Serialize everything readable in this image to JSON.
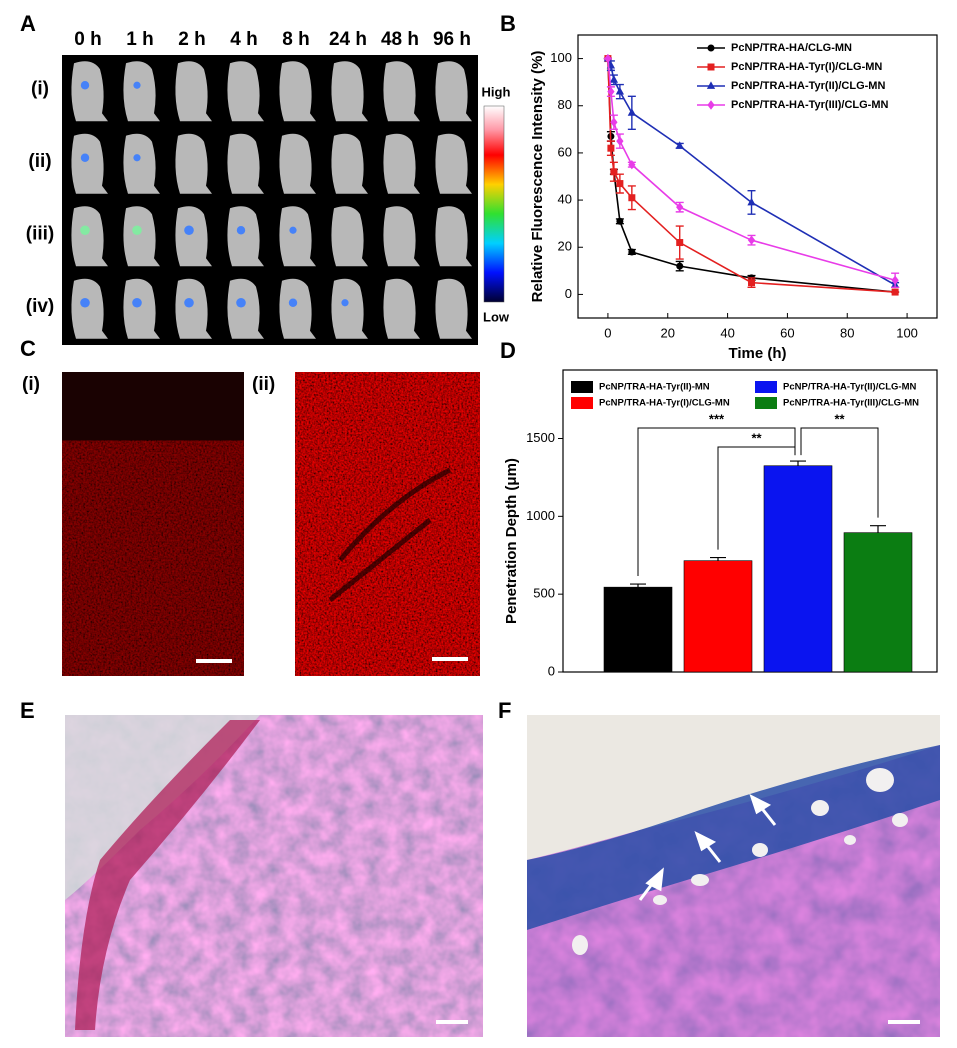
{
  "panels": {
    "A": {
      "label": "A",
      "timepoints": [
        "0 h",
        "1 h",
        "2 h",
        "4 h",
        "8 h",
        "24 h",
        "48 h",
        "96 h"
      ],
      "rows": [
        "(i)",
        "(ii)",
        "(iii)",
        "(iv)"
      ],
      "colorbar": {
        "high": "High",
        "low": "Low"
      }
    },
    "B": {
      "label": "B"
    },
    "C": {
      "label": "C",
      "images": [
        "(i)",
        "(ii)"
      ]
    },
    "D": {
      "label": "D"
    },
    "E": {
      "label": "E"
    },
    "F": {
      "label": "F"
    }
  },
  "chart_data": [
    {
      "type": "line",
      "x_label": "Time (h)",
      "y_label": "Relative Fluorescence Intensity (%)",
      "x": [
        0,
        1,
        2,
        4,
        8,
        24,
        48,
        96
      ],
      "series": [
        {
          "name": "PcNP/TRA-HA/CLG-MN",
          "color": "#000000",
          "marker": "circle",
          "values": [
            100,
            67,
            52,
            31,
            18,
            12,
            7,
            1
          ],
          "errors": [
            0,
            2,
            1,
            1,
            1,
            2,
            1,
            0
          ]
        },
        {
          "name": "PcNP/TRA-HA-Tyr(I)/CLG-MN",
          "color": "#e32020",
          "marker": "square",
          "values": [
            100,
            62,
            52,
            47,
            41,
            22,
            5,
            1
          ],
          "errors": [
            0,
            3,
            4,
            4,
            5,
            7,
            2,
            0
          ]
        },
        {
          "name": "PcNP/TRA-HA-Tyr(II)/CLG-MN",
          "color": "#1f2fb5",
          "marker": "triangle",
          "values": [
            100,
            97,
            91,
            86,
            77,
            63,
            39,
            4
          ],
          "errors": [
            0,
            2,
            2,
            3,
            7,
            1,
            5,
            1
          ]
        },
        {
          "name": "PcNP/TRA-HA-Tyr(III)/CLG-MN",
          "color": "#e83ce8",
          "marker": "diamond",
          "values": [
            100,
            86,
            73,
            65,
            55,
            37,
            23,
            6
          ],
          "errors": [
            0,
            2,
            3,
            3,
            1,
            2,
            2,
            3
          ]
        }
      ],
      "xlim": [
        -10,
        110
      ],
      "xticks": [
        0,
        20,
        40,
        60,
        80,
        100
      ],
      "ylim": [
        -10,
        110
      ],
      "yticks": [
        0,
        20,
        40,
        60,
        80,
        100
      ]
    },
    {
      "type": "bar",
      "y_label": "Penetration Depth (μm)",
      "categories": [
        "PcNP/TRA-HA-Tyr(II)-MN",
        "PcNP/TRA-HA-Tyr(I)/CLG-MN",
        "PcNP/TRA-HA-Tyr(II)/CLG-MN",
        "PcNP/TRA-HA-Tyr(III)/CLG-MN"
      ],
      "colors": [
        "#000000",
        "#ff0000",
        "#0a14f0",
        "#0b7d12"
      ],
      "values": [
        545,
        715,
        1325,
        895
      ],
      "errors": [
        20,
        20,
        30,
        45
      ],
      "annotations": [
        "***",
        "**",
        "**"
      ],
      "ylim": [
        0,
        1940
      ],
      "yticks": [
        0,
        500,
        1000,
        1500
      ]
    }
  ]
}
